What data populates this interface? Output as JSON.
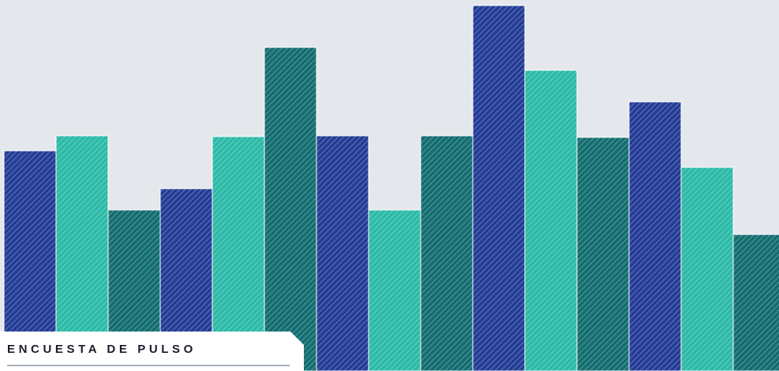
{
  "chart_data": {
    "type": "bar",
    "values": [
      279,
      298,
      204,
      231,
      297,
      410,
      298,
      204,
      298,
      463,
      381,
      296,
      341,
      258,
      173
    ],
    "ylim": [
      0,
      470
    ],
    "colors": [
      "#233c96",
      "#2bbaa7",
      "#136d70"
    ],
    "grid": false,
    "legend": "none"
  },
  "banner": {
    "title": "ENCUESTA DE PULSO"
  }
}
